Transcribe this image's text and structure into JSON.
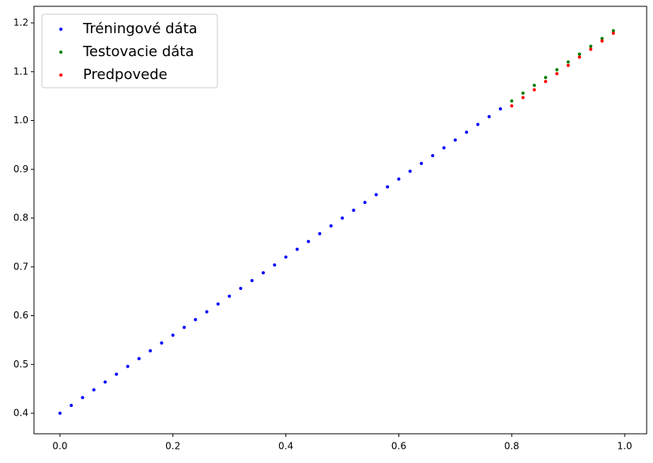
{
  "chart_data": {
    "type": "scatter",
    "series": [
      {
        "name": "Tréningové dáta",
        "color": "#0000ff",
        "x": [
          0,
          0.02,
          0.04,
          0.06,
          0.08,
          0.1,
          0.12,
          0.14,
          0.16,
          0.18,
          0.2,
          0.22,
          0.24,
          0.26,
          0.28,
          0.3,
          0.32,
          0.34,
          0.36,
          0.38,
          0.4,
          0.42,
          0.44,
          0.46,
          0.48,
          0.5,
          0.52,
          0.54,
          0.56,
          0.58,
          0.6,
          0.62,
          0.64,
          0.66,
          0.68,
          0.7,
          0.72,
          0.74,
          0.76,
          0.78
        ],
        "values": [
          0.4,
          0.416,
          0.432,
          0.448,
          0.464,
          0.48,
          0.496,
          0.512,
          0.528,
          0.544,
          0.56,
          0.576,
          0.592,
          0.608,
          0.624,
          0.64,
          0.656,
          0.672,
          0.688,
          0.704,
          0.72,
          0.736,
          0.752,
          0.768,
          0.784,
          0.8,
          0.816,
          0.832,
          0.848,
          0.864,
          0.88,
          0.896,
          0.912,
          0.928,
          0.944,
          0.96,
          0.976,
          0.992,
          1.008,
          1.024
        ]
      },
      {
        "name": "Testovacie dáta",
        "color": "#008000",
        "x": [
          0.8,
          0.82,
          0.84,
          0.86,
          0.88,
          0.9,
          0.92,
          0.94,
          0.96,
          0.98
        ],
        "values": [
          1.04,
          1.056,
          1.072,
          1.088,
          1.104,
          1.12,
          1.136,
          1.152,
          1.168,
          1.184
        ]
      },
      {
        "name": "Predpovede",
        "color": "#ff0000",
        "x": [
          0.8,
          0.82,
          0.84,
          0.86,
          0.88,
          0.9,
          0.92,
          0.94,
          0.96,
          0.98
        ],
        "values": [
          1.03,
          1.047,
          1.063,
          1.08,
          1.096,
          1.113,
          1.13,
          1.146,
          1.163,
          1.179
        ]
      }
    ],
    "xlim": [
      -0.046,
      1.039
    ],
    "ylim": [
      0.358,
      1.234
    ],
    "xticks": [
      {
        "value": 0,
        "label": "0.0"
      },
      0.2,
      0.4,
      0.6,
      0.8,
      {
        "value": 1,
        "label": "1.0"
      }
    ],
    "yticks": [
      0.4,
      0.5,
      0.6,
      0.7,
      0.8,
      0.9,
      {
        "value": 1,
        "label": "1.0"
      },
      1.1,
      1.2
    ],
    "legend": "upper-left",
    "grid": false
  }
}
